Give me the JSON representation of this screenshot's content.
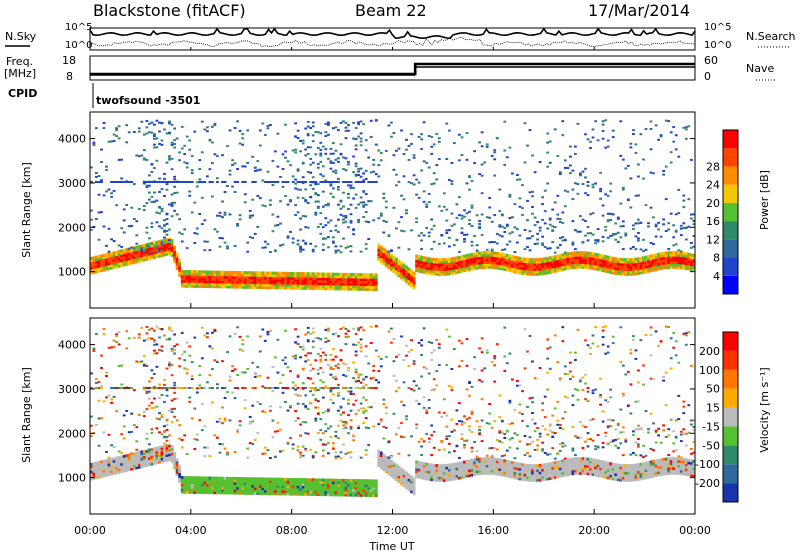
{
  "header": {
    "station": "Blackstone (fitACF)",
    "beam": "Beam 22",
    "date": "17/Mar/2014"
  },
  "summary_panels": {
    "nsky_label": "N.Sky",
    "nsearch_label": "N.Search",
    "noise_ticks": [
      "10^5",
      "10^0"
    ],
    "freq_label": [
      "Freq.",
      "[MHz]"
    ],
    "freq_ticks": [
      "18",
      "8"
    ],
    "nave_label": "Nave",
    "nave_ticks": [
      "60",
      "0"
    ],
    "cpid_label": "CPID",
    "cpid_value": "twofsound -3501"
  },
  "chart_data": [
    {
      "type": "heatmap",
      "name": "power",
      "ylabel": "Slant Range [km]",
      "xlabel": "",
      "yticks": [
        1000,
        2000,
        3000,
        4000
      ],
      "ylim": [
        180,
        4600
      ],
      "colorbar": {
        "label": "Power [dB]",
        "ticks": [
          "4",
          "8",
          "12",
          "16",
          "20",
          "24",
          "28"
        ],
        "colors": [
          "#0000ff",
          "#2244cc",
          "#2f6a9a",
          "#2f8a6a",
          "#55c030",
          "#f4c800",
          "#ff8a00",
          "#ff4400",
          "#ff0000"
        ]
      }
    },
    {
      "type": "heatmap",
      "name": "velocity",
      "ylabel": "Slant Range [km]",
      "xlabel": "Time UT",
      "yticks": [
        1000,
        2000,
        3000,
        4000
      ],
      "ylim": [
        180,
        4600
      ],
      "colorbar": {
        "label": "Velocity [m s⁻¹]",
        "ticks": [
          "200",
          "100",
          "50",
          "15",
          "-15",
          "-50",
          "-100",
          "-200"
        ],
        "colors": [
          "#1a33aa",
          "#2f6a9a",
          "#2f8a6a",
          "#55c030",
          "#bbbbbb",
          "#ffaa00",
          "#ff7700",
          "#ff3300",
          "#ff0000"
        ]
      }
    }
  ],
  "xaxis": {
    "label": "Time UT",
    "ticks": [
      "00:00",
      "04:00",
      "08:00",
      "12:00",
      "16:00",
      "20:00",
      "00:00"
    ]
  }
}
